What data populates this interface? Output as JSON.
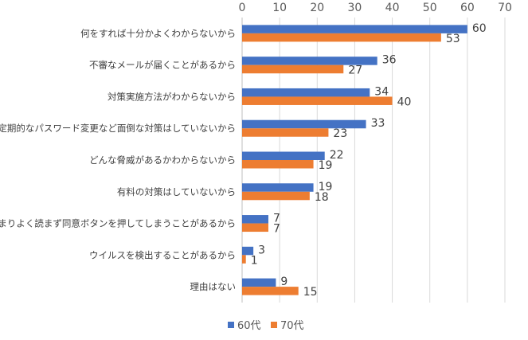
{
  "chart_data": {
    "type": "bar",
    "orientation": "horizontal",
    "categories": [
      "何をすれば十分かよくわからないから",
      "不審なメールが届くことがあるから",
      "対策実施方法がわからないから",
      "定期的なパスワード変更など面倒な対策はしていないから",
      "どんな脅威があるかわからないから",
      "有料の対策はしていないから",
      "あまりよく読まず同意ボタンを押してしまうことがあるから",
      "ウイルスを検出することがあるから",
      "理由はない"
    ],
    "series": [
      {
        "name": "60代",
        "color": "#4472c4",
        "values": [
          60,
          36,
          34,
          33,
          22,
          19,
          7,
          3,
          9
        ]
      },
      {
        "name": "70代",
        "color": "#ed7d31",
        "values": [
          53,
          27,
          40,
          23,
          19,
          18,
          7,
          1,
          15
        ]
      }
    ],
    "xlim": [
      0,
      70
    ],
    "xticks": [
      0,
      10,
      20,
      30,
      40,
      50,
      60,
      70
    ],
    "x_axis_position": "top",
    "grid": true,
    "legend": "bottom",
    "data_labels": true,
    "title": "",
    "xlabel": "",
    "ylabel": ""
  }
}
